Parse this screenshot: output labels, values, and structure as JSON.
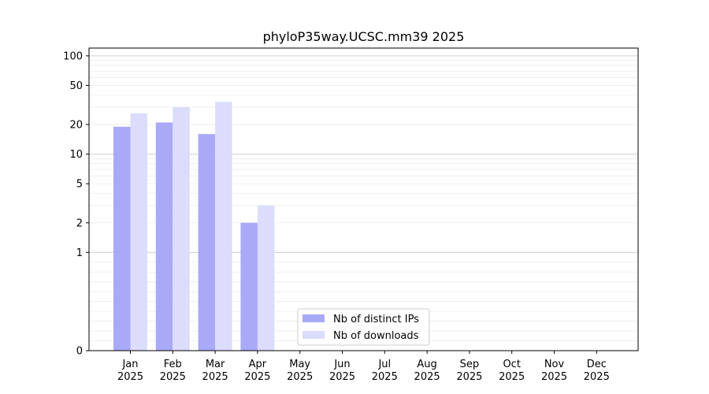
{
  "chart_data": {
    "type": "bar",
    "title": "phyloP35way.UCSC.mm39 2025",
    "xlabel": "",
    "ylabel": "",
    "yscale": "symlog",
    "ylim": [
      0,
      120
    ],
    "grid": "y-major-and-minor",
    "legend_position": "bottom-center",
    "categories": [
      {
        "month": "Jan",
        "year": "2025"
      },
      {
        "month": "Feb",
        "year": "2025"
      },
      {
        "month": "Mar",
        "year": "2025"
      },
      {
        "month": "Apr",
        "year": "2025"
      },
      {
        "month": "May",
        "year": "2025"
      },
      {
        "month": "Jun",
        "year": "2025"
      },
      {
        "month": "Jul",
        "year": "2025"
      },
      {
        "month": "Aug",
        "year": "2025"
      },
      {
        "month": "Sep",
        "year": "2025"
      },
      {
        "month": "Oct",
        "year": "2025"
      },
      {
        "month": "Nov",
        "year": "2025"
      },
      {
        "month": "Dec",
        "year": "2025"
      }
    ],
    "yticks": [
      {
        "value": 0,
        "label": "0"
      },
      {
        "value": 1,
        "label": "1"
      },
      {
        "value": 2,
        "label": "2"
      },
      {
        "value": 5,
        "label": "5"
      },
      {
        "value": 10,
        "label": "10"
      },
      {
        "value": 20,
        "label": "20"
      },
      {
        "value": 50,
        "label": "50"
      },
      {
        "value": 100,
        "label": "100"
      }
    ],
    "series": [
      {
        "name": "Nb of distinct IPs",
        "color": "#a9a9f8",
        "values": [
          19,
          21,
          16,
          2,
          0,
          0,
          0,
          0,
          0,
          0,
          0,
          0
        ]
      },
      {
        "name": "Nb of downloads",
        "color": "#dcdcfc",
        "values": [
          26,
          30,
          34,
          3,
          0,
          0,
          0,
          0,
          0,
          0,
          0,
          0
        ]
      }
    ]
  }
}
